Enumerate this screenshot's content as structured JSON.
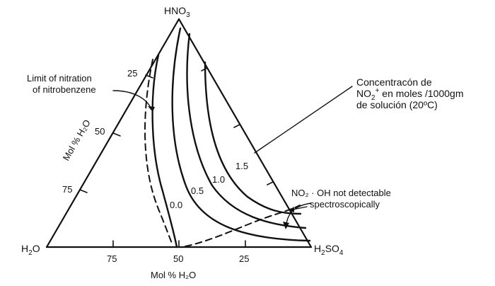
{
  "vertices": {
    "top": {
      "main": "HNO",
      "sub": "3"
    },
    "left": {
      "main": "H",
      "sub": "2",
      "rest": "O"
    },
    "right": {
      "main": "H",
      "sub": "2",
      "main2": "SO",
      "sub2": "4"
    }
  },
  "left_axis": {
    "label": "Mol % H₂O",
    "ticks": [
      "25",
      "50",
      "75"
    ]
  },
  "bottom_axis": {
    "label": "Mol % H₂O",
    "ticks": [
      "75",
      "50",
      "25"
    ]
  },
  "curve_labels": [
    "0.0",
    "0.5",
    "1.0",
    "1.5"
  ],
  "annotations": {
    "limit_line1": "Limit of nitration",
    "limit_line2": "of nitrobenzene",
    "no2oh_line1": "NO₂ · OH not detectable",
    "no2oh_line2": "spectroscopically",
    "legend_line1": "Concentracón de",
    "legend_line2_a": "NO",
    "legend_line2_sub": "2",
    "legend_line2_sup": "+",
    "legend_line2_b": " en moles /1000gm",
    "legend_line3": "de solución (20ºC)"
  }
}
